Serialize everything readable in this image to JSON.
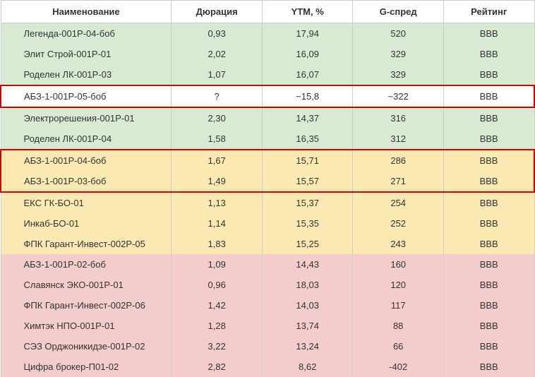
{
  "table": {
    "columns": [
      "Наименование",
      "Дюрация",
      "YTM, %",
      "G-спред",
      "Рейтинг"
    ],
    "column_widths": [
      "32%",
      "17%",
      "17%",
      "17%",
      "17%"
    ],
    "header_bg": "#ffffff",
    "border_color": "#cccccc",
    "highlight_border_color": "#cc0000",
    "font_size": 13,
    "colors": {
      "green": "#d9ead3",
      "yellow": "#fce8b2",
      "pink": "#f4cccc",
      "white": "#ffffff"
    },
    "rows": [
      {
        "name": "Легенда-001Р-04-боб",
        "duration": "0,93",
        "ytm": "17,94",
        "gspread": "520",
        "rating": "BBB",
        "bg": "green",
        "border": "none"
      },
      {
        "name": "Элит Строй-001Р-01",
        "duration": "2,02",
        "ytm": "16,09",
        "gspread": "329",
        "rating": "BBB",
        "bg": "green",
        "border": "none"
      },
      {
        "name": "Роделен ЛК-001Р-03",
        "duration": "1,07",
        "ytm": "16,07",
        "gspread": "329",
        "rating": "BBB",
        "bg": "green",
        "border": "none"
      },
      {
        "name": "АБЗ-1-001Р-05-боб",
        "duration": "?",
        "ytm": "~15,8",
        "gspread": "~322",
        "rating": "BBB",
        "bg": "white",
        "border": "single"
      },
      {
        "name": "Электрорешения-001Р-01",
        "duration": "2,30",
        "ytm": "14,37",
        "gspread": "316",
        "rating": "BBB",
        "bg": "green",
        "border": "none"
      },
      {
        "name": "Роделен ЛК-001Р-04",
        "duration": "1,58",
        "ytm": "16,35",
        "gspread": "312",
        "rating": "BBB",
        "bg": "green",
        "border": "none"
      },
      {
        "name": "АБЗ-1-001Р-04-боб",
        "duration": "1,67",
        "ytm": "15,71",
        "gspread": "286",
        "rating": "BBB",
        "bg": "yellow",
        "border": "top"
      },
      {
        "name": "АБЗ-1-001Р-03-боб",
        "duration": "1,49",
        "ytm": "15,57",
        "gspread": "271",
        "rating": "BBB",
        "bg": "yellow",
        "border": "bottom"
      },
      {
        "name": "ЕКС ГК-БО-01",
        "duration": "1,13",
        "ytm": "15,37",
        "gspread": "254",
        "rating": "BBB",
        "bg": "yellow",
        "border": "none"
      },
      {
        "name": "Инкаб-БО-01",
        "duration": "1,14",
        "ytm": "15,35",
        "gspread": "252",
        "rating": "BBB",
        "bg": "yellow",
        "border": "none"
      },
      {
        "name": "ФПК Гарант-Инвест-002Р-05",
        "duration": "1,83",
        "ytm": "15,25",
        "gspread": "243",
        "rating": "BBB",
        "bg": "yellow",
        "border": "none"
      },
      {
        "name": "АБЗ-1-001Р-02-боб",
        "duration": "1,09",
        "ytm": "14,43",
        "gspread": "160",
        "rating": "BBB",
        "bg": "pink",
        "border": "none"
      },
      {
        "name": "Славянск ЭКО-001Р-01",
        "duration": "0,96",
        "ytm": "18,03",
        "gspread": "120",
        "rating": "BBB",
        "bg": "pink",
        "border": "none"
      },
      {
        "name": "ФПК Гарант-Инвест-002Р-06",
        "duration": "1,42",
        "ytm": "14,03",
        "gspread": "117",
        "rating": "BBB",
        "bg": "pink",
        "border": "none"
      },
      {
        "name": "Химтэк НПО-001Р-01",
        "duration": "1,28",
        "ytm": "13,74",
        "gspread": "88",
        "rating": "BBB",
        "bg": "pink",
        "border": "none"
      },
      {
        "name": "СЭЗ Орджоникидзе-001Р-02",
        "duration": "3,22",
        "ytm": "13,24",
        "gspread": "66",
        "rating": "BBB",
        "bg": "pink",
        "border": "none"
      },
      {
        "name": "Цифра брокер-П01-02",
        "duration": "2,82",
        "ytm": "8,62",
        "gspread": "-402",
        "rating": "BBB",
        "bg": "pink",
        "border": "none"
      }
    ]
  }
}
